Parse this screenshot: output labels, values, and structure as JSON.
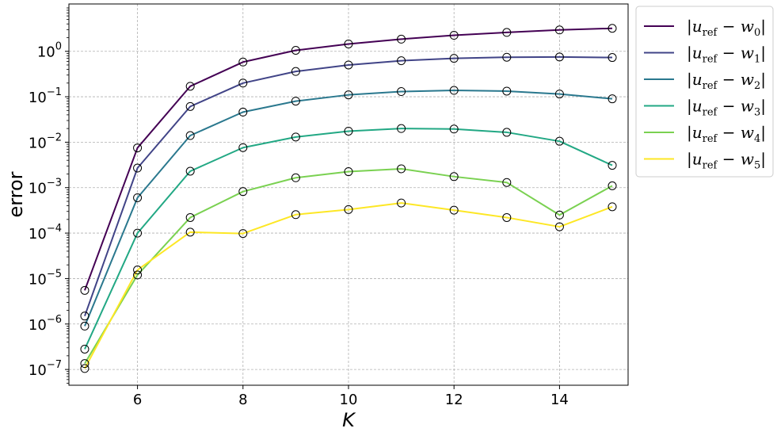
{
  "chart_data": {
    "type": "line",
    "title": "",
    "xlabel": "K",
    "ylabel": "error",
    "yscale": "log",
    "xlim": [
      4.7,
      15.3
    ],
    "ylim": [
      4.5e-08,
      11.0
    ],
    "xticks": [
      6,
      8,
      10,
      12,
      14
    ],
    "yticks": [
      {
        "value": 1e-07,
        "base": "10",
        "exp": "−7"
      },
      {
        "value": 1e-06,
        "base": "10",
        "exp": "−6"
      },
      {
        "value": 1e-05,
        "base": "10",
        "exp": "−5"
      },
      {
        "value": 0.0001,
        "base": "10",
        "exp": "−4"
      },
      {
        "value": 0.001,
        "base": "10",
        "exp": "−3"
      },
      {
        "value": 0.01,
        "base": "10",
        "exp": "−2"
      },
      {
        "value": 0.1,
        "base": "10",
        "exp": "−1"
      },
      {
        "value": 1,
        "base": "10",
        "exp": "0"
      }
    ],
    "grid": true,
    "legend_position": "outside-right",
    "markers": "open-circle",
    "x": [
      5,
      6,
      7,
      8,
      9,
      10,
      11,
      12,
      13,
      14,
      15
    ],
    "series": [
      {
        "name": "|u_ref − w_0|",
        "label_main": "u",
        "label_sub": "ref",
        "label_w": "w",
        "label_idx": "0",
        "color": "#440154",
        "values": [
          5.5e-06,
          0.0075,
          0.17,
          0.58,
          1.05,
          1.45,
          1.85,
          2.25,
          2.6,
          2.95,
          3.2
        ]
      },
      {
        "name": "|u_ref − w_1|",
        "label_main": "u",
        "label_sub": "ref",
        "label_w": "w",
        "label_idx": "1",
        "color": "#414487",
        "values": [
          1.5e-06,
          0.0027,
          0.061,
          0.2,
          0.36,
          0.5,
          0.62,
          0.7,
          0.74,
          0.75,
          0.73
        ]
      },
      {
        "name": "|u_ref − w_2|",
        "label_main": "u",
        "label_sub": "ref",
        "label_w": "w",
        "label_idx": "2",
        "color": "#2a788e",
        "values": [
          9e-07,
          0.0006,
          0.014,
          0.046,
          0.08,
          0.11,
          0.13,
          0.138,
          0.133,
          0.115,
          0.09
        ]
      },
      {
        "name": "|u_ref − w_3|",
        "label_main": "u",
        "label_sub": "ref",
        "label_w": "w",
        "label_idx": "3",
        "color": "#22a884",
        "values": [
          2.8e-07,
          0.0001,
          0.0023,
          0.0076,
          0.013,
          0.0175,
          0.02,
          0.0195,
          0.0165,
          0.0105,
          0.0031
        ]
      },
      {
        "name": "|u_ref − w_4|",
        "label_main": "u",
        "label_sub": "ref",
        "label_w": "w",
        "label_idx": "4",
        "color": "#7ad151",
        "values": [
          1.35e-07,
          1.2e-05,
          0.00022,
          0.00082,
          0.00165,
          0.00225,
          0.0026,
          0.00175,
          0.0013,
          0.00025,
          0.0011
        ]
      },
      {
        "name": "|u_ref − w_5|",
        "label_main": "u",
        "label_sub": "ref",
        "label_w": "w",
        "label_idx": "5",
        "color": "#fde725",
        "values": [
          1.05e-07,
          1.55e-05,
          0.000105,
          9.8e-05,
          0.000255,
          0.00033,
          0.00046,
          0.00032,
          0.00022,
          0.000138,
          0.00038
        ]
      }
    ]
  }
}
